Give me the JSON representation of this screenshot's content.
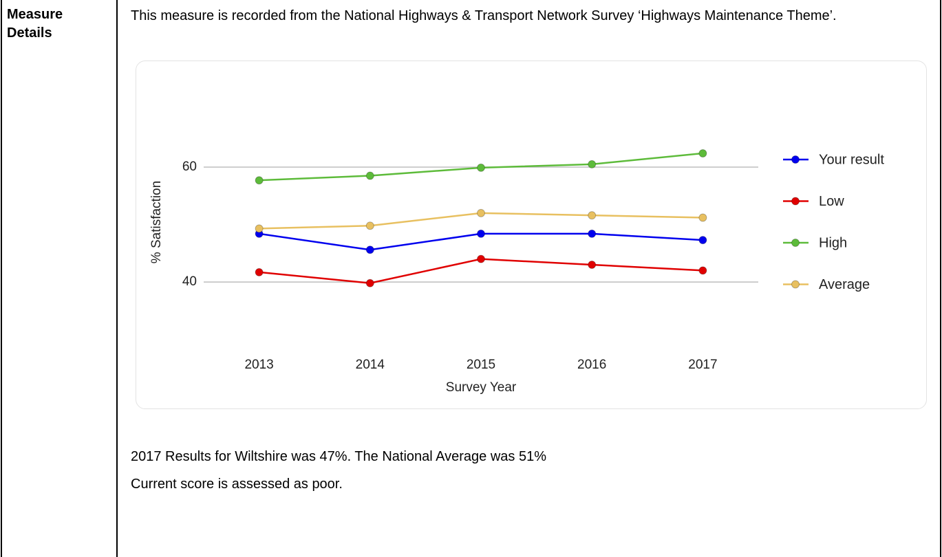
{
  "table": {
    "label": "Measure Details",
    "intro": "This measure is recorded from the National Highways & Transport Network Survey ‘Highways Maintenance Theme’.",
    "chart_data": {
      "type": "line",
      "y_label": "% Satisfaction",
      "x_label": "Survey Year",
      "categories": [
        "2013",
        "2014",
        "2015",
        "2016",
        "2017"
      ],
      "series": [
        {
          "name": "Your result",
          "color": "#0000ee",
          "values": [
            48.4,
            45.6,
            48.4,
            48.4,
            47.3
          ]
        },
        {
          "name": "Low",
          "color": "#e00000",
          "values": [
            41.7,
            39.8,
            44,
            43,
            42
          ]
        },
        {
          "name": "High",
          "color": "#5dbb3a",
          "values": [
            57.7,
            58.5,
            59.9,
            60.5,
            62.4
          ]
        },
        {
          "name": "Average",
          "color": "#e8c060",
          "values": [
            49.3,
            49.8,
            52,
            51.6,
            51.2
          ]
        }
      ],
      "ylim": [
        26,
        70
      ],
      "yticks": [
        40,
        60
      ],
      "grid": true,
      "legend": "right"
    },
    "notes": [
      "2017 Results for Wiltshire was 47%. The National Average was 51%",
      "Current score is assessed as poor."
    ]
  }
}
